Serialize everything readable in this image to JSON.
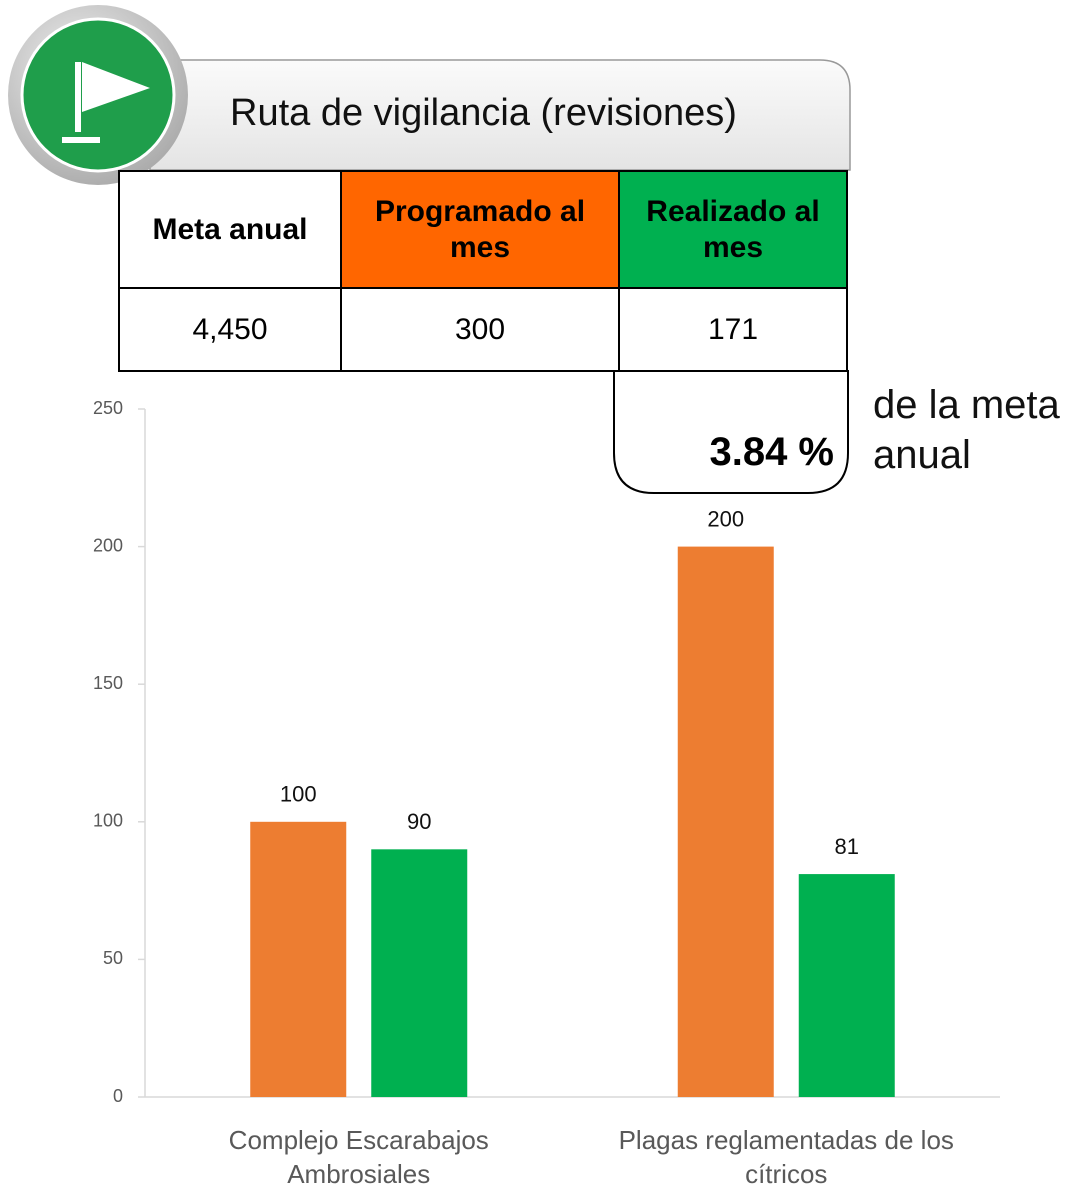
{
  "header": {
    "title": "Ruta de vigilancia (revisiones)"
  },
  "table": {
    "headers": [
      "Meta anual",
      "Programado al mes",
      "Realizado al mes"
    ],
    "rows": [
      [
        "4,450",
        "300",
        "171"
      ]
    ]
  },
  "summary": {
    "value": "3.84 %",
    "note": "de la meta anual"
  },
  "chart_data": {
    "type": "bar",
    "categories": [
      "Complejo Escarabajos Ambrosiales",
      "Plagas reglamentadas de los cítricos"
    ],
    "series": [
      {
        "color": "#ed7d31",
        "values": [
          100,
          200
        ]
      },
      {
        "color": "#00b050",
        "values": [
          90,
          81
        ]
      }
    ],
    "ylim": [
      0,
      250
    ],
    "yticks": [
      0,
      50,
      100,
      150,
      200,
      250
    ],
    "grid": false,
    "data_labels": true
  }
}
